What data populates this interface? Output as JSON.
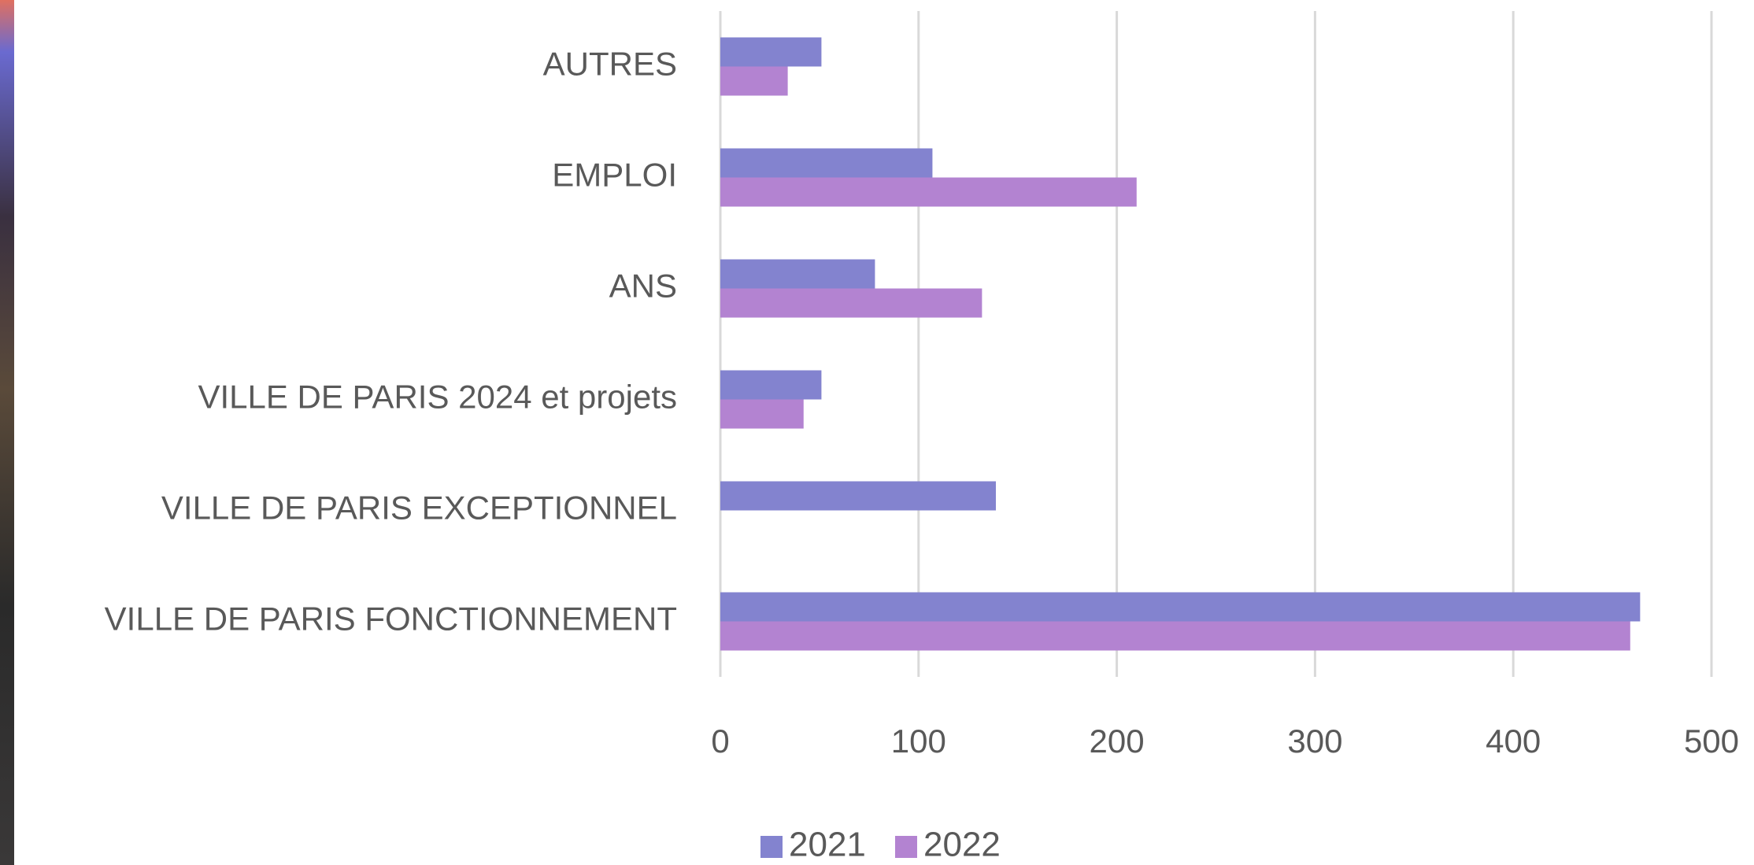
{
  "chart_data": {
    "type": "hbar",
    "categories": [
      "AUTRES",
      "EMPLOI",
      "ANS",
      "VILLE DE PARIS 2024 et projets",
      "VILLE DE PARIS EXCEPTIONNEL",
      "VILLE DE PARIS FONCTIONNEMENT"
    ],
    "series": [
      {
        "name": "2021",
        "color": "#8383cf",
        "values": [
          51,
          107,
          78,
          51,
          139,
          464
        ]
      },
      {
        "name": "2022",
        "color": "#b383d1",
        "values": [
          34,
          210,
          132,
          42,
          null,
          459
        ]
      }
    ],
    "xlim": [
      0,
      500
    ],
    "xticks": [
      0,
      100,
      200,
      300,
      400,
      500
    ],
    "grid": true,
    "legend": "bottom"
  }
}
